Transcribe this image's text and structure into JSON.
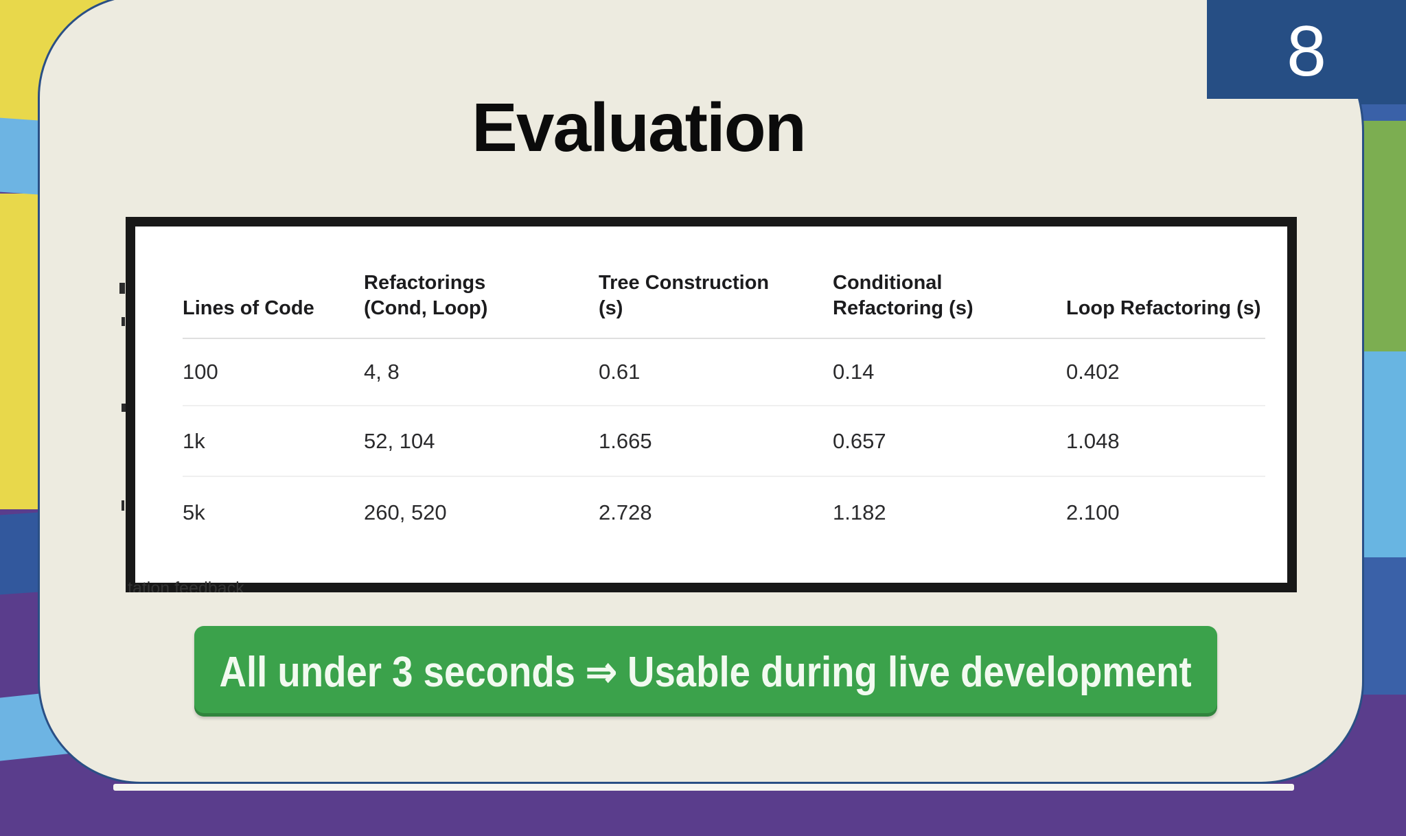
{
  "slide": {
    "number": "8",
    "title": "Evaluation"
  },
  "table": {
    "headers": [
      {
        "lines": [
          "Lines of Code"
        ]
      },
      {
        "lines": [
          "Refactorings",
          "(Cond, Loop)"
        ]
      },
      {
        "lines": [
          "Tree Construction",
          "(s)"
        ]
      },
      {
        "lines": [
          "Conditional",
          "Refactoring (s)"
        ]
      },
      {
        "lines": [
          "Loop Refactoring (s)"
        ]
      }
    ],
    "rows": [
      {
        "cells": [
          "100",
          "4, 8",
          "0.61",
          "0.14",
          "0.402"
        ]
      },
      {
        "cells": [
          "1k",
          "52, 104",
          "1.665",
          "0.657",
          "1.048"
        ]
      },
      {
        "cells": [
          "5k",
          "260, 520",
          "2.728",
          "1.182",
          "2.100"
        ]
      }
    ]
  },
  "banner": {
    "text": "All under 3 seconds ⇒ Usable during live development"
  },
  "fragments": {
    "bottom_left": "tation feedback"
  },
  "colors": {
    "slide_background": "#edebe0",
    "slide_outline": "#2a4f85",
    "number_box": "#264e84",
    "banner_green": "#3ba24b",
    "table_frame": "#181818",
    "bg_yellow": "#e8d84b",
    "bg_light_blue": "#6db4e3",
    "bg_dark_blue": "#32589d",
    "bg_medium_blue": "#3a61a8",
    "bg_green": "#7cae51",
    "bg_purple": "#5a3d8c"
  }
}
